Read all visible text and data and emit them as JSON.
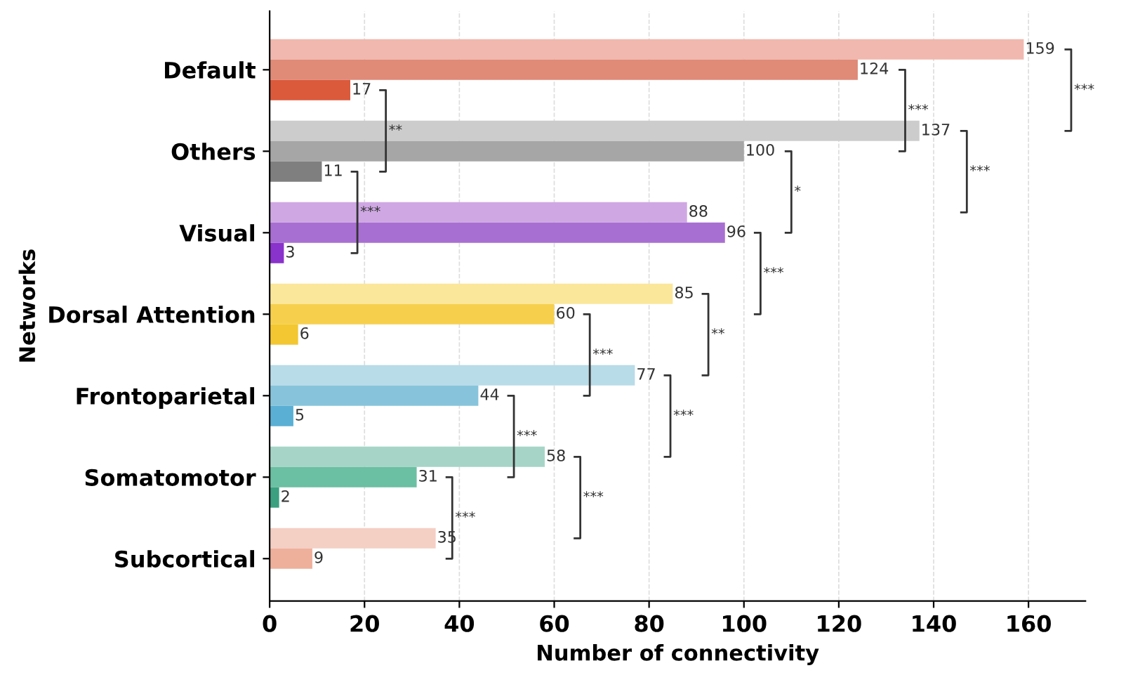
{
  "chart_data": {
    "type": "bar",
    "orientation": "horizontal",
    "xlabel": "Number of connectivity",
    "ylabel": "Networks",
    "categories": [
      "Default",
      "Others",
      "Visual",
      "Dorsal Attention",
      "Frontoparietal",
      "Somatomotor",
      "Subcortical"
    ],
    "series": [
      {
        "values": [
          159,
          137,
          88,
          85,
          77,
          58,
          35
        ],
        "colors": [
          "#f0b8ae",
          "#cccccc",
          "#cfa8e3",
          "#fbe79a",
          "#b8dce8",
          "#a6d5c8",
          "#f4cfc4"
        ]
      },
      {
        "values": [
          124,
          100,
          96,
          60,
          44,
          31,
          9
        ],
        "colors": [
          "#e08a78",
          "#a6a6a6",
          "#a86fd2",
          "#f6d04d",
          "#87c4db",
          "#6bbfa3",
          "#eeb09b"
        ]
      },
      {
        "values": [
          17,
          11,
          3,
          6,
          5,
          2,
          null
        ],
        "colors": [
          "#db5a3c",
          "#7f7f7f",
          "#8a32cc",
          "#f3c731",
          "#5aafd4",
          "#3aa080",
          null
        ]
      }
    ],
    "data_labels": true,
    "xlim": [
      0,
      172
    ],
    "xticks": [
      0,
      20,
      40,
      60,
      80,
      100,
      120,
      140,
      160
    ],
    "grid": "x",
    "annotations": [
      "***",
      "***",
      "**",
      "***",
      "*",
      "***",
      "***",
      "**",
      "***",
      "***",
      "***",
      "***",
      "***"
    ]
  }
}
